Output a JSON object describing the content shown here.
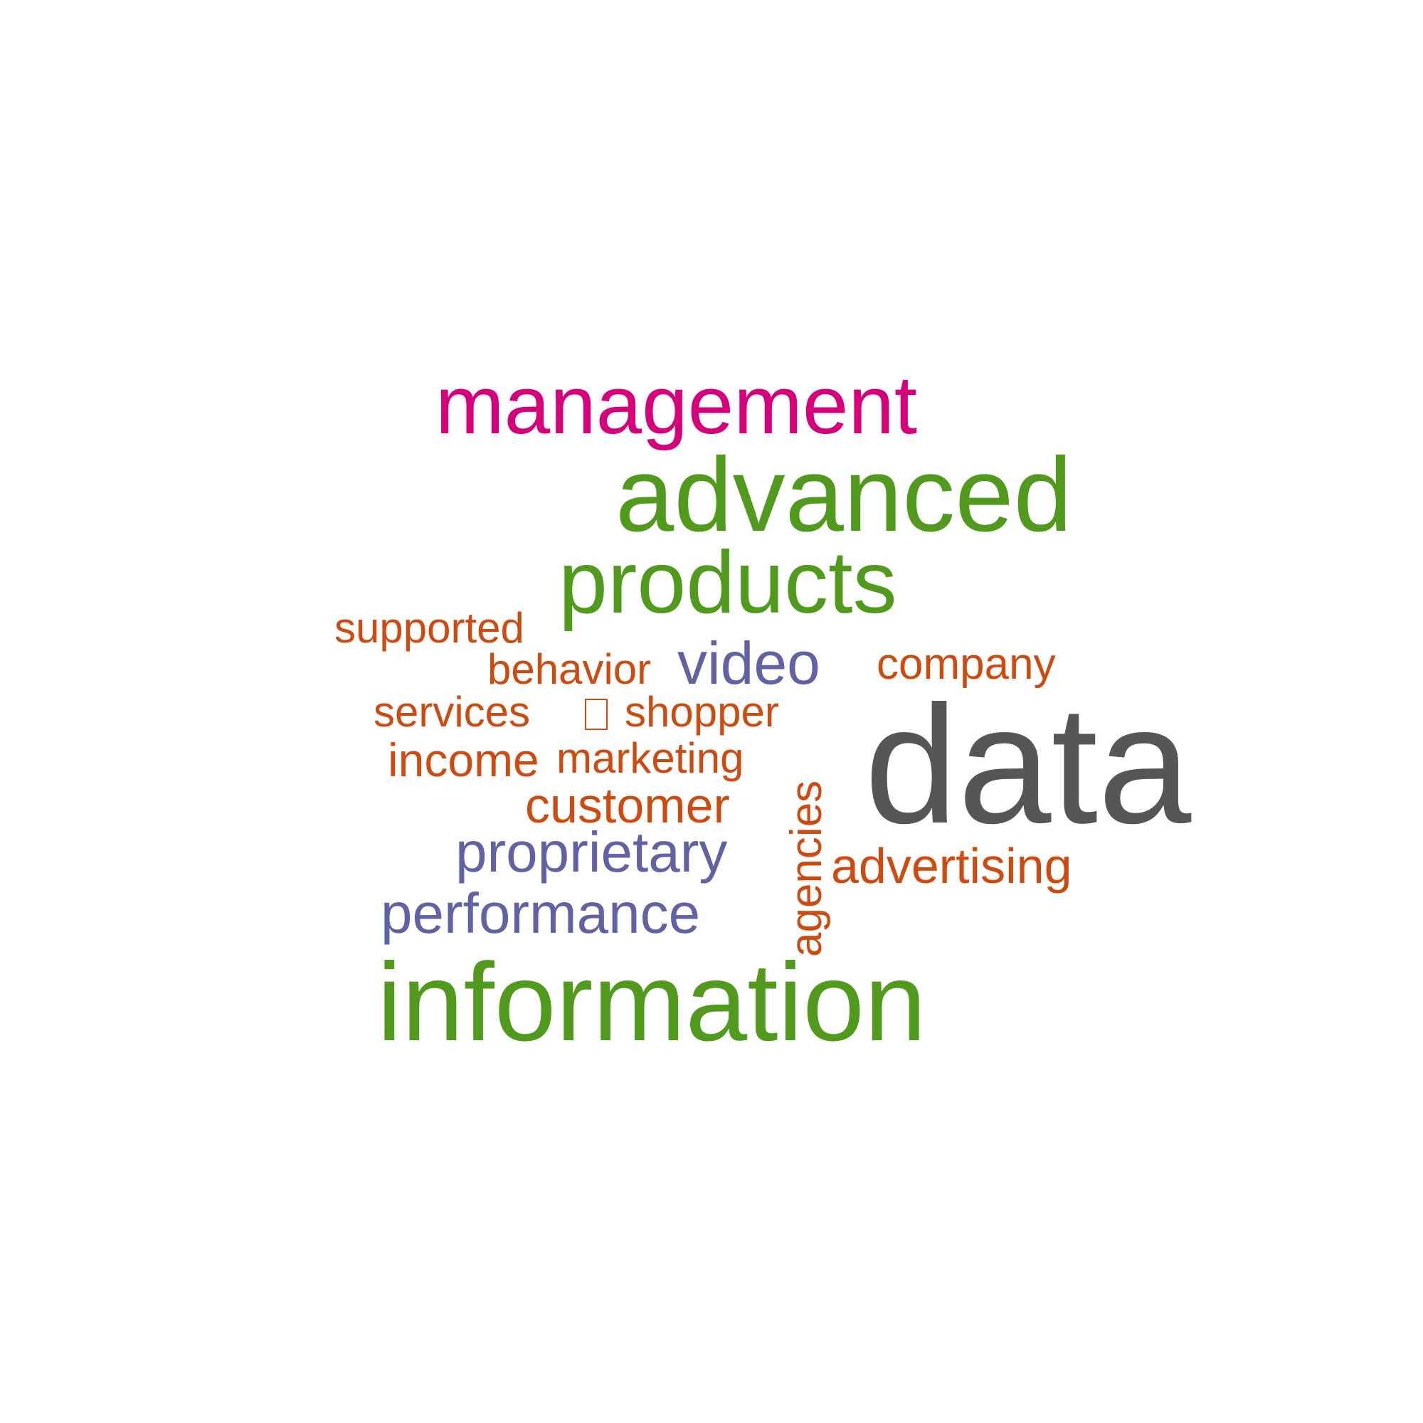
{
  "colors": {
    "background": "#ffffff",
    "magenta": "#d6007a",
    "green": "#519a1d",
    "orange": "#cd4a10",
    "purple": "#6162a3",
    "gray": "#565656"
  },
  "words": [
    {
      "id": "management",
      "text": "management",
      "color": "#d6007a",
      "orientation": "horizontal"
    },
    {
      "id": "advanced",
      "text": "advanced",
      "color": "#519a1d",
      "orientation": "horizontal"
    },
    {
      "id": "products",
      "text": "products",
      "color": "#519a1d",
      "orientation": "horizontal"
    },
    {
      "id": "supported",
      "text": "supported",
      "color": "#cd4a10",
      "orientation": "horizontal"
    },
    {
      "id": "behavior",
      "text": "behavior",
      "color": "#cd4a10",
      "orientation": "horizontal"
    },
    {
      "id": "video",
      "text": "video",
      "color": "#6162a3",
      "orientation": "horizontal"
    },
    {
      "id": "company",
      "text": "company",
      "color": "#cd4a10",
      "orientation": "horizontal"
    },
    {
      "id": "services",
      "text": "services",
      "color": "#cd4a10",
      "orientation": "horizontal"
    },
    {
      "id": "missing-glyph",
      "text": "",
      "color": "#cd4a10",
      "orientation": "horizontal"
    },
    {
      "id": "shopper",
      "text": "shopper",
      "color": "#cd4a10",
      "orientation": "horizontal"
    },
    {
      "id": "data",
      "text": "data",
      "color": "#565656",
      "orientation": "horizontal"
    },
    {
      "id": "income",
      "text": "income",
      "color": "#cd4a10",
      "orientation": "horizontal"
    },
    {
      "id": "marketing",
      "text": "marketing",
      "color": "#cd4a10",
      "orientation": "horizontal"
    },
    {
      "id": "customer",
      "text": "customer",
      "color": "#cd4a10",
      "orientation": "horizontal"
    },
    {
      "id": "agencies",
      "text": "agencies",
      "color": "#cd4a10",
      "orientation": "vertical"
    },
    {
      "id": "proprietary",
      "text": "proprietary",
      "color": "#6162a3",
      "orientation": "horizontal"
    },
    {
      "id": "advertising",
      "text": "advertising",
      "color": "#cd4a10",
      "orientation": "horizontal"
    },
    {
      "id": "performance",
      "text": "performance",
      "color": "#6162a3",
      "orientation": "horizontal"
    },
    {
      "id": "information",
      "text": "information",
      "color": "#519a1d",
      "orientation": "horizontal"
    }
  ]
}
